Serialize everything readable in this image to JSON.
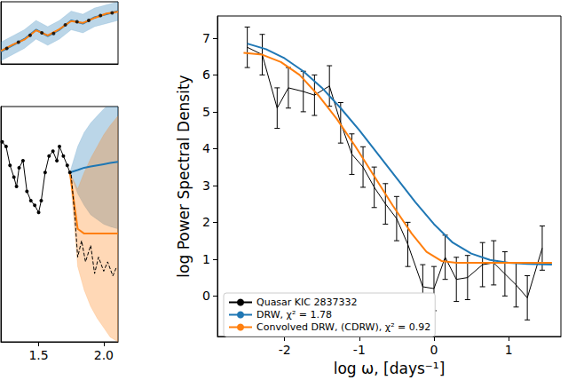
{
  "chart_data": [
    {
      "type": "line",
      "xlabel": "log ω, [days⁻¹]",
      "ylabel": "log Power Spectral Density",
      "xlim": [
        -2.9,
        1.7
      ],
      "ylim": [
        -1.1,
        7.6
      ],
      "xticks": [
        -2,
        -1,
        0,
        1
      ],
      "yticks": [
        0,
        1,
        2,
        3,
        4,
        5,
        6,
        7
      ],
      "grid": false,
      "legend": "lower left",
      "series": [
        {
          "name": "Quasar KIC 2837332",
          "color": "#000000",
          "marker": "none",
          "line_style": "solid",
          "x": [
            -2.5,
            -2.3,
            -2.1,
            -1.95,
            -1.75,
            -1.6,
            -1.4,
            -1.25,
            -1.1,
            -0.95,
            -0.8,
            -0.65,
            -0.5,
            -0.35,
            -0.15,
            0.0,
            0.15,
            0.3,
            0.45,
            0.65,
            0.8,
            0.95,
            1.1,
            1.25,
            1.45
          ],
          "values": [
            6.75,
            6.55,
            5.1,
            5.65,
            5.55,
            5.45,
            5.7,
            4.7,
            3.85,
            3.5,
            2.95,
            2.5,
            2.1,
            1.4,
            0.25,
            0.2,
            1.05,
            0.45,
            0.5,
            0.85,
            0.9,
            0.6,
            0.3,
            -0.05,
            1.3
          ],
          "errors": [
            0.55,
            0.55,
            0.55,
            0.55,
            0.55,
            0.55,
            0.55,
            0.55,
            0.55,
            0.55,
            0.55,
            0.55,
            0.6,
            0.6,
            0.6,
            0.6,
            0.6,
            0.6,
            0.6,
            0.6,
            0.6,
            0.6,
            0.6,
            0.6,
            0.6
          ]
        },
        {
          "name": "DRW, χ² = 1.78",
          "color": "#1f77b4",
          "marker": "none",
          "line_style": "solid",
          "x": [
            -2.5,
            -2.25,
            -2.0,
            -1.75,
            -1.5,
            -1.25,
            -1.0,
            -0.75,
            -0.5,
            -0.25,
            0.0,
            0.25,
            0.5,
            0.75,
            1.0,
            1.25,
            1.58
          ],
          "values": [
            6.85,
            6.7,
            6.45,
            6.1,
            5.65,
            5.1,
            4.5,
            3.85,
            3.2,
            2.55,
            1.95,
            1.45,
            1.15,
            0.98,
            0.9,
            0.87,
            0.85
          ]
        },
        {
          "name": "Convolved DRW, (CDRW), χ² = 0.92",
          "color": "#ff7f0e",
          "marker": "none",
          "line_style": "solid",
          "x": [
            -2.55,
            -2.3,
            -2.05,
            -1.8,
            -1.55,
            -1.3,
            -1.05,
            -0.8,
            -0.55,
            -0.3,
            -0.1,
            0.1,
            0.3,
            0.6,
            1.0,
            1.58
          ],
          "values": [
            6.6,
            6.55,
            6.35,
            6.0,
            5.45,
            4.8,
            4.05,
            3.25,
            2.45,
            1.7,
            1.2,
            0.95,
            0.9,
            0.9,
            0.9,
            0.9
          ]
        }
      ]
    },
    {
      "type": "line",
      "xlim": [
        1.21,
        2.11
      ],
      "ylim": [
        0,
        10
      ],
      "xticks": [
        {
          "value": 1.5,
          "label": "1.5"
        },
        {
          "value": 2.0,
          "label": "2.0"
        }
      ],
      "grid": false,
      "tick_labels": "x",
      "series": [
        {
          "color": "#1f77b4",
          "marker": "none",
          "line_style": "solid",
          "x": [
            1.74,
            1.8,
            1.85,
            1.9,
            1.95,
            2.0,
            2.05,
            2.11
          ],
          "values": [
            7.2,
            7.3,
            7.4,
            7.45,
            7.5,
            7.55,
            7.6,
            7.65
          ],
          "lower": [
            7.2,
            6.3,
            5.8,
            5.4,
            5.2,
            5.0,
            4.9,
            4.8
          ],
          "upper": [
            7.2,
            8.3,
            8.9,
            9.3,
            9.6,
            9.9,
            10.1,
            10.3
          ]
        },
        {
          "color": "#ff7f0e",
          "marker": "none",
          "line_style": "solid",
          "x": [
            1.74,
            1.8,
            1.85,
            1.9,
            1.95,
            2.0,
            2.05,
            2.11
          ],
          "values": [
            7.2,
            4.8,
            4.6,
            4.6,
            4.6,
            4.6,
            4.6,
            4.6
          ],
          "lower": [
            7.2,
            3.2,
            2.2,
            1.5,
            1.0,
            0.6,
            0.2,
            0.0
          ],
          "upper": [
            7.2,
            6.5,
            7.2,
            7.8,
            8.3,
            8.8,
            9.2,
            9.6
          ]
        },
        {
          "color": "#000000",
          "marker": "none",
          "line_style": "dashed",
          "x": [
            1.75,
            1.78,
            1.8,
            1.83,
            1.86,
            1.9,
            1.93,
            1.96,
            2.0,
            2.03,
            2.07,
            2.1
          ],
          "values": [
            7.1,
            5.2,
            3.6,
            4.3,
            3.4,
            4.1,
            2.9,
            3.6,
            3.0,
            3.4,
            2.8,
            3.2
          ]
        },
        {
          "color": "#000000",
          "marker": "o",
          "line_style": "solid",
          "x": [
            1.22,
            1.25,
            1.28,
            1.31,
            1.33,
            1.35,
            1.38,
            1.41,
            1.44,
            1.47,
            1.5,
            1.52,
            1.55,
            1.58,
            1.61,
            1.64,
            1.66,
            1.69,
            1.72,
            1.74
          ],
          "values": [
            8.5,
            8.3,
            7.5,
            7.0,
            6.6,
            7.4,
            7.7,
            6.4,
            6.0,
            5.8,
            5.5,
            6.0,
            7.2,
            7.9,
            8.1,
            7.7,
            8.3,
            7.9,
            7.5,
            7.2
          ]
        }
      ]
    },
    {
      "type": "line",
      "xlim": [
        0,
        10
      ],
      "ylim": [
        0,
        10
      ],
      "grid": false,
      "tick_labels": false,
      "series": [
        {
          "color": "#1f77b4",
          "marker": "none",
          "line_style": "solid",
          "x": [
            0,
            1,
            2,
            3,
            4,
            5,
            6,
            7,
            8,
            9,
            10
          ],
          "values": [
            2.0,
            3.0,
            4.0,
            5.5,
            4.5,
            5.5,
            7.0,
            6.5,
            7.5,
            8.0,
            8.5
          ],
          "lower": [
            0.5,
            1.5,
            2.5,
            4.0,
            3.0,
            4.0,
            5.5,
            5.0,
            6.0,
            6.5,
            7.0
          ],
          "upper": [
            3.5,
            4.5,
            5.5,
            7.0,
            6.0,
            7.0,
            8.5,
            8.0,
            9.0,
            9.5,
            10.0
          ]
        },
        {
          "color": "#ff7f0e",
          "marker": "none",
          "line_style": "solid",
          "x": [
            0,
            1,
            2,
            3,
            4,
            5,
            6,
            7,
            8,
            9,
            10
          ],
          "values": [
            2.1,
            3.1,
            3.9,
            5.4,
            4.6,
            5.6,
            6.9,
            6.6,
            7.4,
            8.1,
            8.4
          ]
        },
        {
          "color": "#000000",
          "marker": "o",
          "line_style": "none",
          "x": [
            0.5,
            1.5,
            2.5,
            3.5,
            4.5,
            5.5,
            6.5,
            7.5,
            8.5,
            9.5
          ],
          "values": [
            2.5,
            3.5,
            4.6,
            5.0,
            4.9,
            6.3,
            6.8,
            7.0,
            7.8,
            8.2
          ]
        }
      ]
    }
  ]
}
